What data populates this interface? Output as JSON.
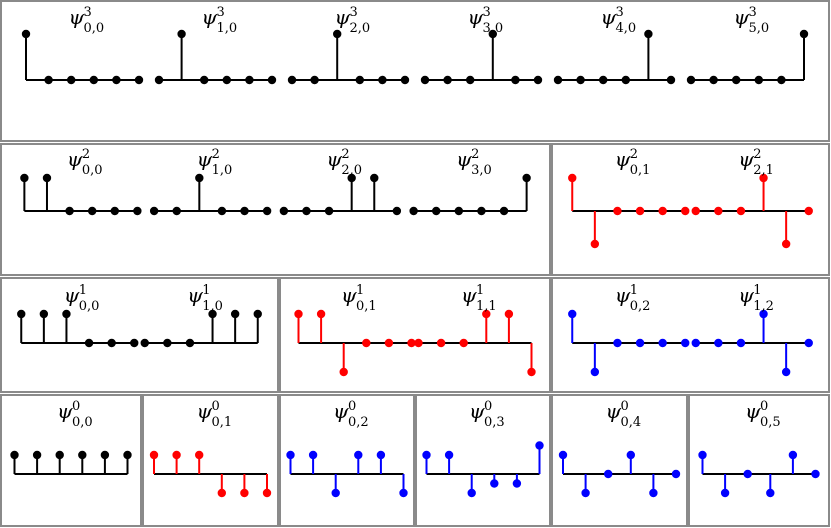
{
  "colors": {
    "border": "#8a8a8a",
    "black": "#000000",
    "red": "#ff0000",
    "blue": "#0000ff"
  },
  "rows": [
    {
      "panels": [
        {
          "plots": [
            {
              "sym": "ψ",
              "sup": "3",
              "sub": "0,0",
              "color": "black",
              "values": [
                1,
                0,
                0,
                0,
                0,
                0
              ]
            },
            {
              "sym": "ψ",
              "sup": "3",
              "sub": "1,0",
              "color": "black",
              "values": [
                0,
                1,
                0,
                0,
                0,
                0
              ]
            },
            {
              "sym": "ψ",
              "sup": "3",
              "sub": "2,0",
              "color": "black",
              "values": [
                0,
                0,
                1,
                0,
                0,
                0
              ]
            },
            {
              "sym": "ψ",
              "sup": "3",
              "sub": "3,0",
              "color": "black",
              "values": [
                0,
                0,
                0,
                1,
                0,
                0
              ]
            },
            {
              "sym": "ψ",
              "sup": "3",
              "sub": "4,0",
              "color": "black",
              "values": [
                0,
                0,
                0,
                0,
                1,
                0
              ]
            },
            {
              "sym": "ψ",
              "sup": "3",
              "sub": "5,0",
              "color": "black",
              "values": [
                0,
                0,
                0,
                0,
                0,
                1
              ]
            }
          ]
        }
      ]
    },
    {
      "panels": [
        {
          "plots": [
            {
              "sym": "ψ",
              "sup": "2",
              "sub": "0,0",
              "color": "black",
              "values": [
                1,
                1,
                0,
                0,
                0,
                0
              ]
            },
            {
              "sym": "ψ",
              "sup": "2",
              "sub": "1,0",
              "color": "black",
              "values": [
                0,
                0,
                1,
                0,
                0,
                0
              ]
            },
            {
              "sym": "ψ",
              "sup": "2",
              "sub": "2,0",
              "color": "black",
              "values": [
                0,
                0,
                0,
                1,
                1,
                0
              ]
            },
            {
              "sym": "ψ",
              "sup": "2",
              "sub": "3,0",
              "color": "black",
              "values": [
                0,
                0,
                0,
                0,
                0,
                1
              ]
            }
          ]
        },
        {
          "plots": [
            {
              "sym": "ψ",
              "sup": "2",
              "sub": "0,1",
              "color": "red",
              "values": [
                1,
                -1,
                0,
                0,
                0,
                0
              ]
            },
            {
              "sym": "ψ",
              "sup": "2",
              "sub": "2,1",
              "color": "red",
              "values": [
                0,
                0,
                0,
                1,
                -1,
                0
              ]
            }
          ]
        }
      ]
    },
    {
      "panels": [
        {
          "plots": [
            {
              "sym": "ψ",
              "sup": "1",
              "sub": "0,0",
              "color": "black",
              "values": [
                1,
                1,
                1,
                0,
                0,
                0
              ]
            },
            {
              "sym": "ψ",
              "sup": "1",
              "sub": "1,0",
              "color": "black",
              "values": [
                0,
                0,
                0,
                1,
                1,
                1
              ]
            }
          ]
        },
        {
          "plots": [
            {
              "sym": "ψ",
              "sup": "1",
              "sub": "0,1",
              "color": "red",
              "values": [
                1,
                1,
                -1,
                0,
                0,
                0
              ]
            },
            {
              "sym": "ψ",
              "sup": "1",
              "sub": "1,1",
              "color": "red",
              "values": [
                0,
                0,
                0,
                1,
                1,
                -1
              ]
            }
          ]
        },
        {
          "plots": [
            {
              "sym": "ψ",
              "sup": "1",
              "sub": "0,2",
              "color": "blue",
              "values": [
                1,
                -1,
                0,
                0,
                0,
                0
              ]
            },
            {
              "sym": "ψ",
              "sup": "1",
              "sub": "1,2",
              "color": "blue",
              "values": [
                0,
                0,
                0,
                1,
                -1,
                0
              ]
            }
          ]
        }
      ]
    },
    {
      "panels": [
        {
          "plots": [
            {
              "sym": "ψ",
              "sup": "0",
              "sub": "0,0",
              "color": "black",
              "values": [
                1,
                1,
                1,
                1,
                1,
                1
              ]
            }
          ]
        },
        {
          "plots": [
            {
              "sym": "ψ",
              "sup": "0",
              "sub": "0,1",
              "color": "red",
              "values": [
                1,
                1,
                1,
                -1,
                -1,
                -1
              ]
            }
          ]
        },
        {
          "plots": [
            {
              "sym": "ψ",
              "sup": "0",
              "sub": "0,2",
              "color": "blue",
              "values": [
                1,
                1,
                -1,
                1,
                1,
                -1
              ]
            }
          ]
        },
        {
          "plots": [
            {
              "sym": "ψ",
              "sup": "0",
              "sub": "0,3",
              "color": "blue",
              "values": [
                1,
                1,
                -1,
                -0.5,
                -0.5,
                1.5
              ]
            }
          ]
        },
        {
          "plots": [
            {
              "sym": "ψ",
              "sup": "0",
              "sub": "0,4",
              "color": "blue",
              "values": [
                1,
                -1,
                0,
                1,
                -1,
                0
              ]
            }
          ]
        },
        {
          "plots": [
            {
              "sym": "ψ",
              "sup": "0",
              "sub": "0,5",
              "color": "blue",
              "values": [
                1,
                -1,
                0,
                -1,
                1,
                0
              ]
            }
          ]
        }
      ]
    }
  ]
}
